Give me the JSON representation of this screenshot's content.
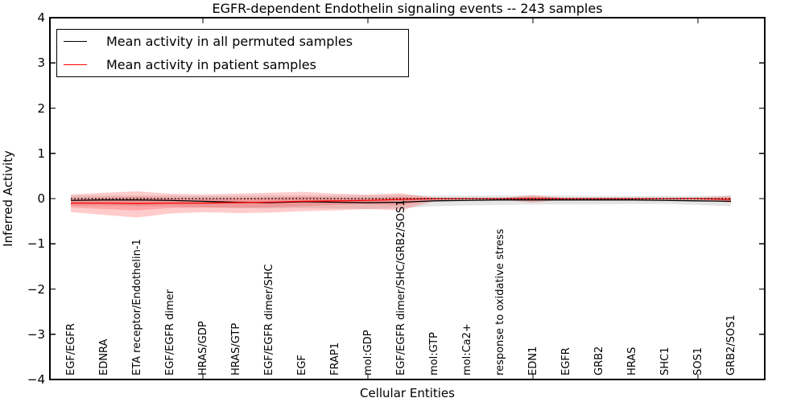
{
  "figure": {
    "title": "EGFR-dependent Endothelin signaling events -- 243 samples",
    "xlabel": "Cellular Entities",
    "ylabel": "Inferred Activity"
  },
  "chart_data": {
    "type": "line",
    "title": "EGFR-dependent Endothelin signaling events -- 243 samples",
    "xlabel": "Cellular Entities",
    "ylabel": "Inferred Activity",
    "ylim": [
      -4,
      4
    ],
    "yticks": [
      4,
      3,
      2,
      1,
      0,
      -1,
      -2,
      -3,
      -4
    ],
    "ytick_labels": [
      "4",
      "3",
      "2",
      "1",
      "0",
      "−1",
      "−2",
      "−3",
      "−4"
    ],
    "xtick_major_indices": [
      4,
      9,
      14,
      19
    ],
    "grid": false,
    "legend_position": "upper left",
    "categories": [
      "EGF/EGFR",
      "EDNRA",
      "ETA receptor/Endothelin-1",
      "EGF/EGFR dimer",
      "HRAS/GDP",
      "HRAS/GTP",
      "EGF/EGFR dimer/SHC",
      "EGF",
      "FRAP1",
      "mol:GDP",
      "EGF/EGFR dimer/SHC/GRB2/SOS1",
      "mol:GTP",
      "mol:Ca2+",
      "response to oxidative stress",
      "EDN1",
      "EGFR",
      "GRB2",
      "HRAS",
      "SHC1",
      "SOS1",
      "GRB2/SOS1"
    ],
    "series": [
      {
        "name": "Mean activity in all permuted samples",
        "color": "#000000",
        "values": [
          -0.04,
          -0.03,
          -0.03,
          -0.04,
          -0.06,
          -0.08,
          -0.09,
          -0.07,
          -0.08,
          -0.09,
          -0.08,
          -0.05,
          -0.04,
          -0.03,
          -0.03,
          -0.03,
          -0.03,
          -0.03,
          -0.04,
          -0.05,
          -0.06
        ]
      },
      {
        "name": "Mean activity in patient samples",
        "color": "#ff0000",
        "values": [
          -0.1,
          -0.1,
          -0.11,
          -0.1,
          -0.1,
          -0.09,
          -0.08,
          -0.06,
          -0.05,
          -0.04,
          -0.02,
          0.0,
          0.0,
          0.0,
          0.0,
          0.0,
          0.0,
          0.0,
          0.0,
          0.0,
          -0.02
        ]
      }
    ],
    "bands": [
      {
        "name": "permuted-std-band",
        "color": "#000000",
        "opacity": 0.1,
        "upper": [
          0.07,
          0.07,
          0.07,
          0.07,
          0.06,
          0.06,
          0.07,
          0.07,
          0.07,
          0.07,
          0.08,
          0.07,
          0.07,
          0.07,
          0.07,
          0.07,
          0.06,
          0.06,
          0.06,
          0.06,
          0.07
        ],
        "lower": [
          -0.16,
          -0.16,
          -0.17,
          -0.17,
          -0.19,
          -0.21,
          -0.22,
          -0.21,
          -0.22,
          -0.23,
          -0.21,
          -0.17,
          -0.15,
          -0.14,
          -0.13,
          -0.13,
          -0.13,
          -0.12,
          -0.12,
          -0.14,
          -0.17
        ]
      },
      {
        "name": "patient-std-band",
        "color": "#ff0000",
        "opacity": 0.2,
        "upper": [
          0.09,
          0.13,
          0.16,
          0.11,
          0.09,
          0.11,
          0.13,
          0.15,
          0.11,
          0.09,
          0.12,
          0.02,
          0.01,
          0.01,
          0.08,
          0.01,
          0.01,
          0.01,
          0.01,
          0.02,
          0.06
        ],
        "lower": [
          -0.3,
          -0.36,
          -0.42,
          -0.33,
          -0.3,
          -0.32,
          -0.31,
          -0.28,
          -0.26,
          -0.23,
          -0.26,
          -0.06,
          -0.02,
          -0.02,
          -0.09,
          -0.02,
          -0.02,
          -0.02,
          -0.02,
          -0.03,
          -0.09
        ]
      },
      {
        "name": "patient-inner-band",
        "color": "#ff0000",
        "opacity": 0.18,
        "upper": [
          0.0,
          0.02,
          0.04,
          0.01,
          0.0,
          0.01,
          0.02,
          0.04,
          0.02,
          0.01,
          0.04,
          0.01,
          0.0,
          0.0,
          0.04,
          0.0,
          0.0,
          0.0,
          0.0,
          0.01,
          0.02
        ],
        "lower": [
          -0.2,
          -0.23,
          -0.26,
          -0.21,
          -0.2,
          -0.2,
          -0.19,
          -0.17,
          -0.14,
          -0.12,
          -0.14,
          -0.03,
          -0.01,
          -0.01,
          -0.05,
          -0.01,
          -0.01,
          -0.01,
          -0.01,
          -0.02,
          -0.05
        ]
      }
    ],
    "zero_line": {
      "value": 0,
      "style": "dotted",
      "color": "#000000"
    }
  }
}
